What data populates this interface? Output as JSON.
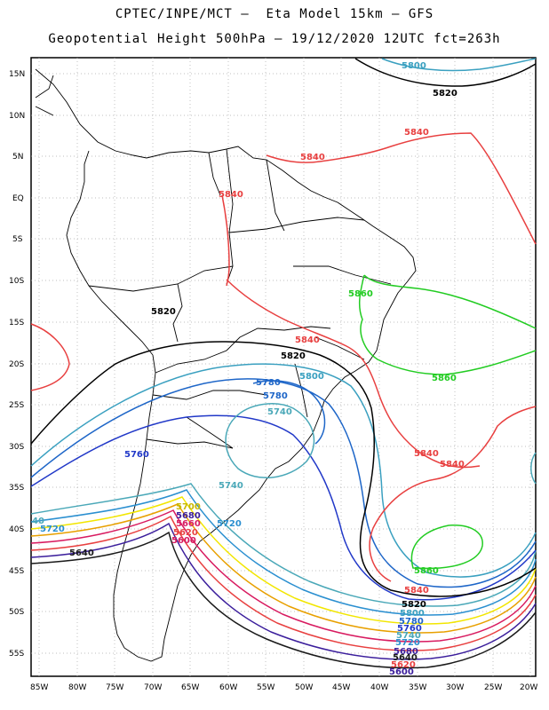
{
  "header": {
    "line1": "CPTEC/INPE/MCT –  Eta Model 15km – GFS",
    "line2": "Geopotential Height 500hPa – 19/12/2020 12UTC fct=263h"
  },
  "axes": {
    "lat_labels": [
      "15N",
      "10N",
      "5N",
      "EQ",
      "5S",
      "10S",
      "15S",
      "20S",
      "25S",
      "30S",
      "35S",
      "40S",
      "45S",
      "50S",
      "55S"
    ],
    "lon_labels": [
      "85W",
      "80W",
      "75W",
      "70W",
      "65W",
      "60W",
      "55W",
      "50W",
      "45W",
      "40W",
      "35W",
      "30W",
      "25W",
      "20W"
    ]
  },
  "contour_colors": {
    "5640": "#1a1a1a",
    "5660": "#d81b60",
    "5680": "#3b1e9c",
    "5700": "#f2e600",
    "5720": "#2a8fd0",
    "5740": "#4aa8b8",
    "5760": "#2138c8",
    "5780": "#1e66c8",
    "5800": "#3aa0c0",
    "5820": "#000000",
    "5840": "#e84040",
    "5860": "#22cc22"
  },
  "contour_labels": [
    {
      "id": "l5800-top",
      "text": "5800",
      "color": "#3aa0c0"
    },
    {
      "id": "l5820-top",
      "text": "5820",
      "color": "#000000"
    },
    {
      "id": "l5840-ne",
      "text": "5840",
      "color": "#e84040"
    },
    {
      "id": "l5840-n",
      "text": "5840",
      "color": "#e84040"
    },
    {
      "id": "l5840-eq",
      "text": "5840",
      "color": "#e84040"
    },
    {
      "id": "l5860-ne",
      "text": "5860",
      "color": "#22cc22"
    },
    {
      "id": "l5820-mid",
      "text": "5820",
      "color": "#000000"
    },
    {
      "id": "l5840-mid",
      "text": "5840",
      "color": "#e84040"
    },
    {
      "id": "l5820-c",
      "text": "5820",
      "color": "#000000"
    },
    {
      "id": "l5860-e",
      "text": "5860",
      "color": "#22cc22"
    },
    {
      "id": "l5800-c",
      "text": "5800",
      "color": "#3aa0c0"
    },
    {
      "id": "l5780-c",
      "text": "5780",
      "color": "#1e66c8"
    },
    {
      "id": "l5780-c2",
      "text": "5780",
      "color": "#1e66c8"
    },
    {
      "id": "l5740-c",
      "text": "5740",
      "color": "#4aa8b8"
    },
    {
      "id": "l5760-w",
      "text": "5760",
      "color": "#2138c8"
    },
    {
      "id": "l5840-s1",
      "text": "5840",
      "color": "#e84040"
    },
    {
      "id": "l5840-s2",
      "text": "5840",
      "color": "#e84040"
    },
    {
      "id": "l5740-s",
      "text": "5740",
      "color": "#4aa8b8"
    },
    {
      "id": "l5700-s",
      "text": "5700",
      "color": "#f2e600"
    },
    {
      "id": "l5680-s",
      "text": "5680",
      "color": "#3b1e9c"
    },
    {
      "id": "l5720-s",
      "text": "5720",
      "color": "#2a8fd0"
    },
    {
      "id": "l5660-s",
      "text": "5660",
      "color": "#d81b60"
    },
    {
      "id": "l5620-s",
      "text": "5620",
      "color": "#e84040"
    },
    {
      "id": "l5600-s",
      "text": "5600",
      "color": "#d81b60"
    },
    {
      "id": "l5640-w",
      "text": "5640",
      "color": "#1a1a1a"
    },
    {
      "id": "l5720-w",
      "text": "5720",
      "color": "#2a8fd0"
    },
    {
      "id": "l5740-w",
      "text": "40",
      "color": "#4aa8b8"
    },
    {
      "id": "l5860-se",
      "text": "5860",
      "color": "#22cc22"
    },
    {
      "id": "l5840-se",
      "text": "5840",
      "color": "#e84040"
    },
    {
      "id": "l5820-se",
      "text": "5820",
      "color": "#000000"
    },
    {
      "id": "l5800-se",
      "text": "5800",
      "color": "#3aa0c0"
    },
    {
      "id": "l5780-se",
      "text": "5780",
      "color": "#1e66c8"
    },
    {
      "id": "l5760-se",
      "text": "5760",
      "color": "#2138c8"
    },
    {
      "id": "l5740-se",
      "text": "5740",
      "color": "#4aa8b8"
    },
    {
      "id": "l5720-se",
      "text": "5720",
      "color": "#2a8fd0"
    },
    {
      "id": "l5680-se",
      "text": "5680",
      "color": "#3b1e9c"
    },
    {
      "id": "l5640-se",
      "text": "5640",
      "color": "#1a1a1a"
    },
    {
      "id": "l5620-se",
      "text": "5620",
      "color": "#e84040"
    },
    {
      "id": "l5600-se",
      "text": "5600",
      "color": "#3b1e9c"
    }
  ]
}
